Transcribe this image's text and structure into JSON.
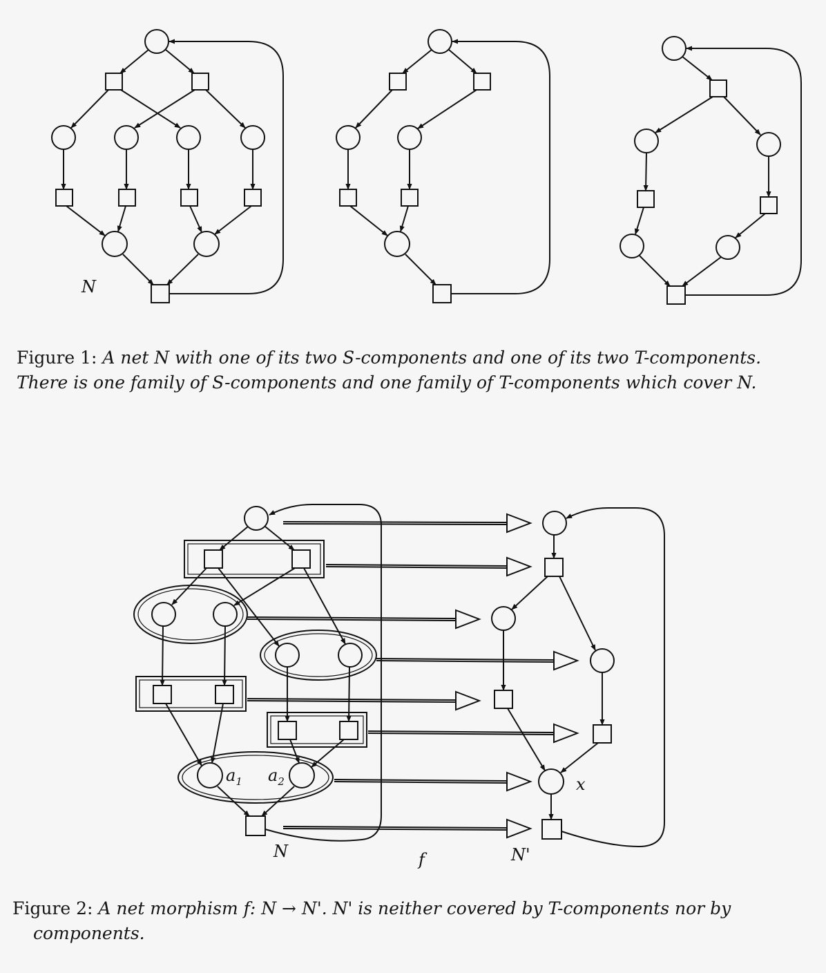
{
  "figure1": {
    "net_label": "N",
    "caption_label": "Figure 1:",
    "caption_line1": "A net N with one of its two S-components and one of its two T-components.",
    "caption_line2": "There is one family of S-components and one family of T-components which cover N."
  },
  "figure2": {
    "source_label": "N",
    "morphism_label": "f",
    "target_label": "N'",
    "place_a1": "a",
    "place_a1_sub": "1",
    "place_a2": "a",
    "place_a2_sub": "2",
    "place_x": "x",
    "caption_label": "Figure 2:",
    "caption_line1": "A net morphism f: N → N'. N' is neither covered by T-components nor by",
    "caption_line2": "components."
  },
  "colors": {
    "ink": "#111111",
    "paper": "#f6f6f7"
  }
}
